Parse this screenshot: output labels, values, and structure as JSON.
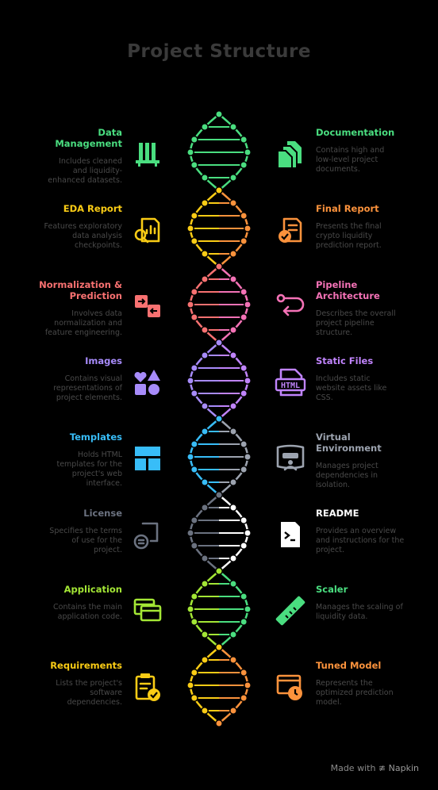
{
  "title": "Project Structure",
  "footer": {
    "made_with": "Made with",
    "brand": "Napkin"
  },
  "segments": [
    {
      "color": "#4ade80",
      "left": {
        "head": "Data\nManagement",
        "desc": "Includes cleaned\nand liquidity-\nenhanced datasets.",
        "icon": "books-icon"
      },
      "right": {
        "head": "Documentation",
        "desc": "Contains high and\nlow-level project\ndocuments.",
        "icon": "documents-icon"
      }
    },
    {
      "color": "#facc15",
      "right_color": "#fb923c",
      "left": {
        "head": "EDA Report",
        "desc": "Features exploratory\ndata analysis\ncheckpoints.",
        "icon": "report-search-icon"
      },
      "right": {
        "head": "Final Report",
        "desc": "Presents the final\ncrypto liquidity\nprediction report.",
        "icon": "report-check-icon"
      }
    },
    {
      "color": "#f87171",
      "right_color": "#f472b6",
      "left": {
        "head": "Normalization &\nPrediction",
        "desc": "Involves data\nnormalization and\nfeature engineering.",
        "icon": "transform-icon"
      },
      "right": {
        "head": "Pipeline\nArchitecture",
        "desc": "Describes the overall\nproject pipeline\nstructure.",
        "icon": "route-icon"
      }
    },
    {
      "color": "#a78bfa",
      "right_color": "#c084fc",
      "left": {
        "head": "Images",
        "desc": "Contains visual\nrepresentations of\nproject elements.",
        "icon": "shapes-icon"
      },
      "right": {
        "head": "Static Files",
        "desc": "Includes static\nwebsite assets like\nCSS.",
        "icon": "html-file-icon"
      }
    },
    {
      "color": "#38bdf8",
      "right_color": "#9ca3af",
      "left": {
        "head": "Templates",
        "desc": "Holds HTML\ntemplates for the\nproject's web\ninterface.",
        "icon": "layout-icon"
      },
      "right": {
        "head": "Virtual\nEnvironment",
        "desc": "Manages project\ndependencies in\nisolation.",
        "icon": "vr-room-icon"
      }
    },
    {
      "color": "#6b7280",
      "right_color": "#ffffff",
      "left": {
        "head": "License",
        "desc": "Specifies the terms\nof use for the\nproject.",
        "icon": "license-icon"
      },
      "right": {
        "head": "README",
        "desc": "Provides an overview\nand instructions for the\nproject.",
        "icon": "terminal-doc-icon"
      }
    },
    {
      "color": "#a3e635",
      "right_color": "#4ade80",
      "left": {
        "head": "Application",
        "desc": "Contains the main\napplication code.",
        "icon": "app-windows-icon"
      },
      "right": {
        "head": "Scaler",
        "desc": "Manages the scaling of\nliquidity data.",
        "icon": "ruler-icon"
      }
    },
    {
      "color": "#facc15",
      "right_color": "#fb923c",
      "left": {
        "head": "Requirements",
        "desc": "Lists the project's\nsoftware\ndependencies.",
        "icon": "clipboard-check-icon"
      },
      "right": {
        "head": "Tuned Model",
        "desc": "Represents the\noptimized prediction\nmodel.",
        "icon": "timer-window-icon"
      }
    }
  ]
}
